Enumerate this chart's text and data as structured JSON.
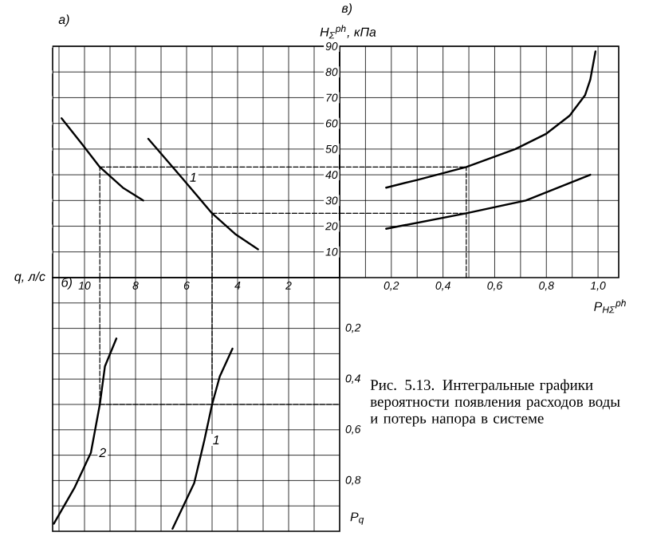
{
  "chart_data": [
    {
      "type": "line",
      "title": "а)",
      "xlabel": "q, л/с",
      "xlim": [
        11.25,
        0
      ],
      "ylim": [
        0,
        90
      ],
      "xticks": [
        {
          "value": 1,
          "label": null
        },
        2,
        {
          "value": 3,
          "label": null
        },
        4,
        {
          "value": 5,
          "label": null
        },
        6,
        {
          "value": 7,
          "label": null
        },
        8,
        {
          "value": 9,
          "label": null
        },
        10,
        {
          "value": 11,
          "label": null
        }
      ],
      "yticks": [
        10,
        20,
        30,
        40,
        50,
        60,
        70,
        80,
        90
      ],
      "tick_labels": "x",
      "grid": true,
      "series": [
        {
          "color": "#000000",
          "x": [
            10.9,
            10.1,
            9.4,
            8.5,
            7.7
          ],
          "values": [
            62,
            52,
            43,
            35,
            30
          ]
        },
        {
          "name": "1",
          "color": "#000000",
          "x": [
            7.5,
            6.2,
            5.0,
            4.1,
            3.2
          ],
          "values": [
            54,
            39,
            25,
            17,
            11
          ]
        },
        {
          "color": "#000000",
          "line_style": "dashed",
          "x": [
            9.4,
            0
          ],
          "values": [
            43,
            43
          ]
        },
        {
          "color": "#000000",
          "line_style": "dashed",
          "x": [
            5.0,
            0
          ],
          "values": [
            25,
            25
          ]
        },
        {
          "color": "#000000",
          "line_style": "dashed",
          "x": [
            9.4,
            9.4
          ],
          "values": [
            0,
            43
          ]
        },
        {
          "color": "#000000",
          "line_style": "dashed",
          "x": [
            5.0,
            5.0
          ],
          "values": [
            0,
            25
          ]
        }
      ]
    },
    {
      "type": "line",
      "title": "в)",
      "ylabel": "H$_{Σ}$$^{ph}$, кПа",
      "xlabel": "P$_{HΣ}$$^{ph}$",
      "xlim": [
        0,
        1.08
      ],
      "ylim": [
        0,
        90
      ],
      "xticks": [
        {
          "value": 0.1,
          "label": null
        },
        {
          "value": 0.2,
          "label": "0,2"
        },
        {
          "value": 0.3,
          "label": null
        },
        {
          "value": 0.4,
          "label": "0,4"
        },
        {
          "value": 0.5,
          "label": null
        },
        {
          "value": 0.6,
          "label": "0,6"
        },
        {
          "value": 0.7,
          "label": null
        },
        {
          "value": 0.8,
          "label": "0,8"
        },
        {
          "value": 0.9,
          "label": null
        },
        {
          "value": 1.0,
          "label": "1,0"
        }
      ],
      "yticks": [
        10,
        20,
        30,
        40,
        50,
        60,
        70,
        80,
        90
      ],
      "grid": true,
      "series": [
        {
          "color": "#000000",
          "x": [
            0.18,
            0.3,
            0.49,
            0.68,
            0.8,
            0.89,
            0.95,
            0.97,
            0.99
          ],
          "values": [
            35,
            38,
            43,
            50,
            56,
            63,
            71,
            77,
            88
          ]
        },
        {
          "color": "#000000",
          "x": [
            0.18,
            0.49,
            0.72,
            0.97
          ],
          "values": [
            19,
            25,
            30,
            40
          ]
        },
        {
          "color": "#000000",
          "line_style": "dashed",
          "x": [
            0,
            0.49
          ],
          "values": [
            43,
            43
          ]
        },
        {
          "color": "#000000",
          "line_style": "dashed",
          "x": [
            0,
            0.49
          ],
          "values": [
            25,
            25
          ]
        },
        {
          "color": "#000000",
          "line_style": "dashed",
          "x": [
            0.49,
            0.49
          ],
          "values": [
            0,
            43
          ]
        }
      ]
    },
    {
      "type": "line",
      "title": "б)",
      "ylabel": "P$_{q}$",
      "xlim": [
        11.25,
        0
      ],
      "ylim": [
        1.0,
        0
      ],
      "tick_labels": "y",
      "xticks": [
        1,
        2,
        3,
        4,
        5,
        6,
        7,
        8,
        9,
        10,
        11
      ],
      "yticks": [
        {
          "value": 0.1,
          "label": null
        },
        {
          "value": 0.2,
          "label": "0,2"
        },
        {
          "value": 0.3,
          "label": null
        },
        {
          "value": 0.4,
          "label": "0,4"
        },
        {
          "value": 0.5,
          "label": null
        },
        {
          "value": 0.6,
          "label": "0,6"
        },
        {
          "value": 0.7,
          "label": null
        },
        {
          "value": 0.8,
          "label": "0,8"
        },
        {
          "value": 0.9,
          "label": null
        }
      ],
      "grid": true,
      "annotations": [
        "Рис. 5.13. Интегральные графики вероятности появления расходов воды и потерь напора в системе"
      ],
      "series": [
        {
          "name": "2",
          "color": "#000000",
          "x": [
            11.2,
            10.4,
            9.75,
            9.4,
            9.2,
            8.75
          ],
          "values": [
            0.97,
            0.83,
            0.69,
            0.5,
            0.35,
            0.24
          ]
        },
        {
          "name": "1",
          "color": "#000000",
          "x": [
            6.55,
            5.7,
            5.3,
            5.0,
            4.7,
            4.2
          ],
          "values": [
            0.99,
            0.81,
            0.64,
            0.5,
            0.39,
            0.28
          ]
        },
        {
          "color": "#000000",
          "line_style": "dashed",
          "x": [
            9.4,
            9.4
          ],
          "values": [
            0,
            0.5
          ]
        },
        {
          "color": "#000000",
          "line_style": "dashed",
          "x": [
            5.0,
            5.0
          ],
          "values": [
            0,
            0.5
          ]
        },
        {
          "color": "#000000",
          "line_style": "dashed",
          "x": [
            9.4,
            0
          ],
          "values": [
            0.5,
            0.5
          ]
        }
      ]
    }
  ]
}
